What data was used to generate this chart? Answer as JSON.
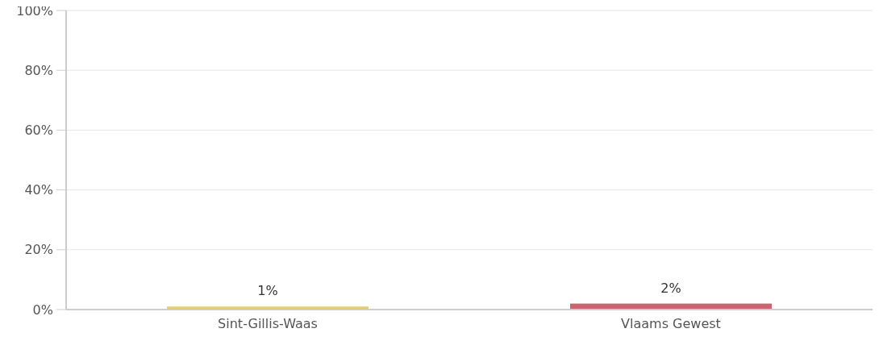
{
  "chart_data": {
    "type": "bar",
    "categories": [
      "Sint-Gillis-Waas",
      "Vlaams Gewest"
    ],
    "values": [
      1,
      2
    ],
    "colors": [
      "#e5cc72",
      "#cc6370"
    ],
    "value_labels": [
      "1%",
      "2%"
    ],
    "ylim": [
      0,
      100
    ],
    "yticks": [
      {
        "value": 0,
        "label": "0%"
      },
      {
        "value": 20,
        "label": "20%"
      },
      {
        "value": 40,
        "label": "40%"
      },
      {
        "value": 60,
        "label": "60%"
      },
      {
        "value": 80,
        "label": "80%"
      },
      {
        "value": 100,
        "label": "100%"
      }
    ],
    "grid": "y"
  }
}
